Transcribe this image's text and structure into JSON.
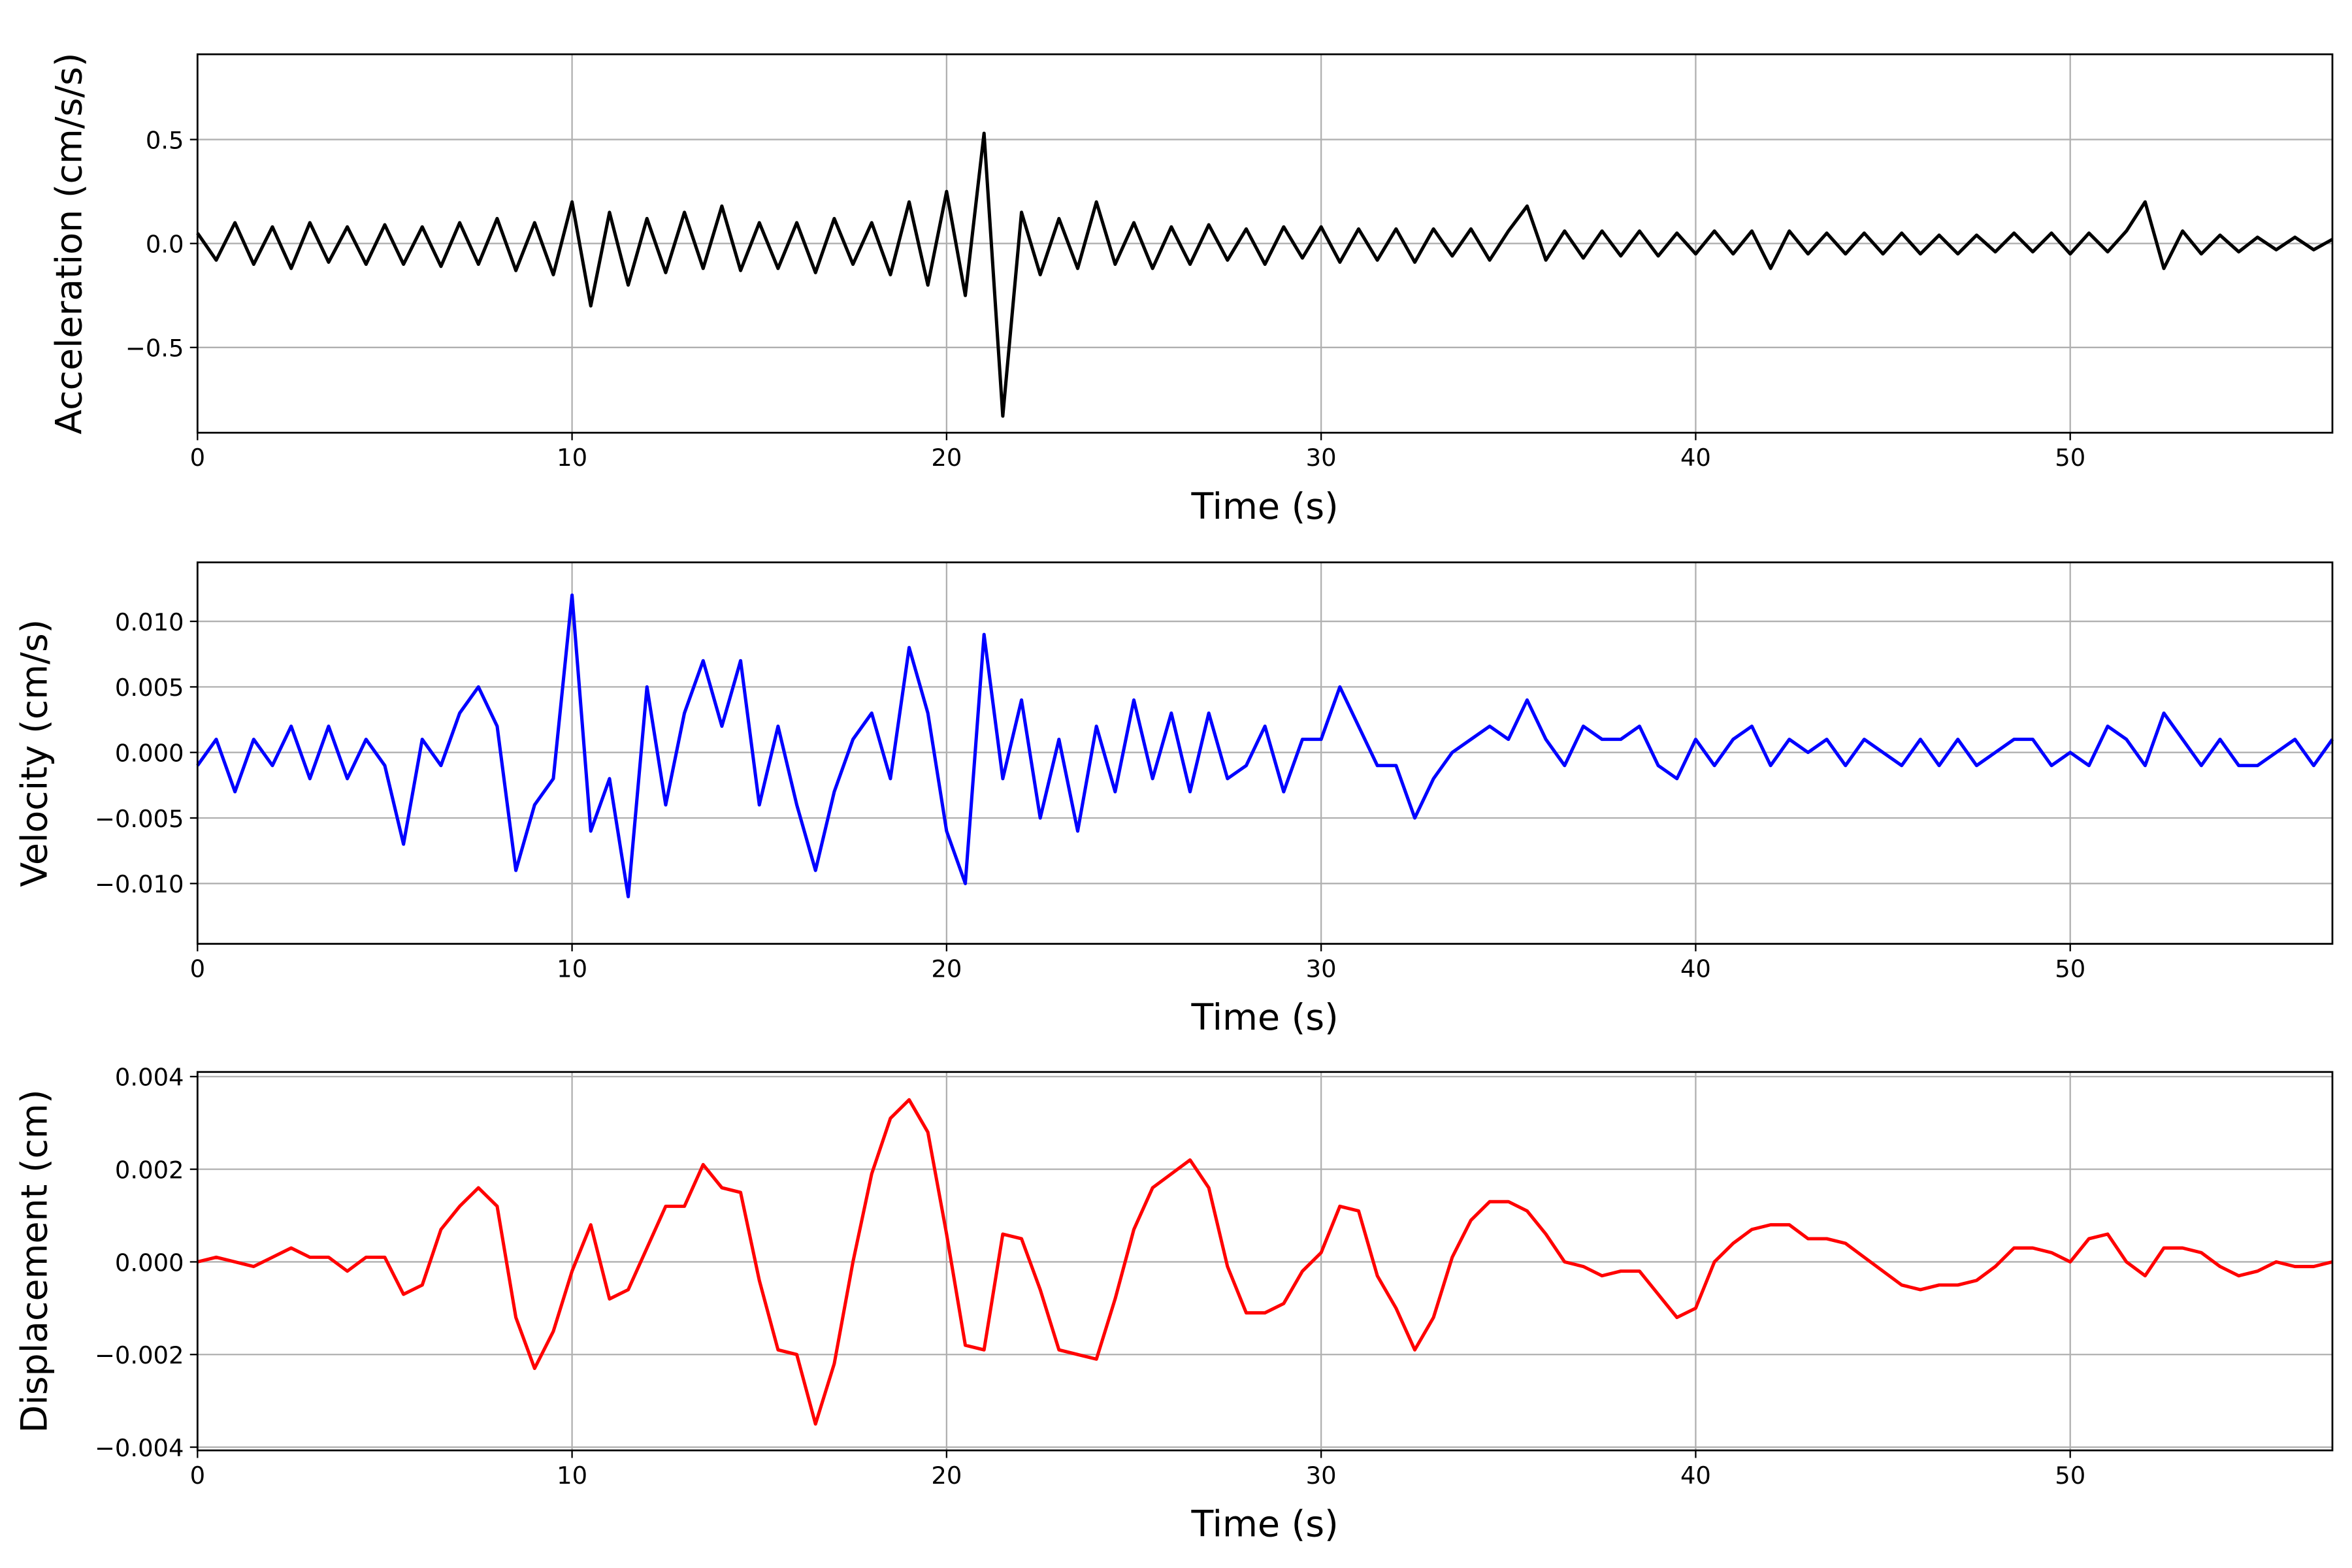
{
  "chart_data": [
    {
      "type": "line",
      "xlabel": "Time (s)",
      "ylabel": "Acceleration (cm/s/s)",
      "color": "#000000",
      "grid": true,
      "xlim": [
        0,
        57
      ],
      "xticks": [
        0,
        10,
        20,
        30,
        40,
        50
      ],
      "ylim": [
        -0.91,
        0.91
      ],
      "yticks": [
        {
          "value": -0.5,
          "label": "−0.5"
        },
        {
          "value": 0,
          "label": "0.0"
        },
        0.5
      ],
      "x": [
        0,
        0.5,
        1,
        1.5,
        2,
        2.5,
        3,
        3.5,
        4,
        4.5,
        5,
        5.5,
        6,
        6.5,
        7,
        7.5,
        8,
        8.5,
        9,
        9.5,
        10,
        10.5,
        11,
        11.5,
        12,
        12.5,
        13,
        13.5,
        14,
        14.5,
        15,
        15.5,
        16,
        16.5,
        17,
        17.5,
        18,
        18.5,
        19,
        19.5,
        20,
        20.5,
        21,
        21.5,
        22,
        22.5,
        23,
        23.5,
        24,
        24.5,
        25,
        25.5,
        26,
        26.5,
        27,
        27.5,
        28,
        28.5,
        29,
        29.5,
        30,
        30.5,
        31,
        31.5,
        32,
        32.5,
        33,
        33.5,
        34,
        34.5,
        35,
        35.5,
        36,
        36.5,
        37,
        37.5,
        38,
        38.5,
        39,
        39.5,
        40,
        40.5,
        41,
        41.5,
        42,
        42.5,
        43,
        43.5,
        44,
        44.5,
        45,
        45.5,
        46,
        46.5,
        47,
        47.5,
        48,
        48.5,
        49,
        49.5,
        50,
        50.5,
        51,
        51.5,
        52,
        52.5,
        53,
        53.5,
        54,
        54.5,
        55,
        55.5,
        56,
        56.5,
        57
      ],
      "values": [
        0.05,
        -0.08,
        0.1,
        -0.1,
        0.08,
        -0.12,
        0.1,
        -0.09,
        0.08,
        -0.1,
        0.09,
        -0.1,
        0.08,
        -0.11,
        0.1,
        -0.1,
        0.12,
        -0.13,
        0.1,
        -0.15,
        0.2,
        -0.3,
        0.15,
        -0.2,
        0.12,
        -0.14,
        0.15,
        -0.12,
        0.18,
        -0.13,
        0.1,
        -0.12,
        0.1,
        -0.14,
        0.12,
        -0.1,
        0.1,
        -0.15,
        0.2,
        -0.2,
        0.25,
        -0.25,
        0.53,
        -0.83,
        0.15,
        -0.15,
        0.12,
        -0.12,
        0.2,
        -0.1,
        0.1,
        -0.12,
        0.08,
        -0.1,
        0.09,
        -0.08,
        0.07,
        -0.1,
        0.08,
        -0.07,
        0.08,
        -0.09,
        0.07,
        -0.08,
        0.07,
        -0.09,
        0.07,
        -0.06,
        0.07,
        -0.08,
        0.06,
        0.18,
        -0.08,
        0.06,
        -0.07,
        0.06,
        -0.06,
        0.06,
        -0.06,
        0.05,
        -0.05,
        0.06,
        -0.05,
        0.06,
        -0.12,
        0.06,
        -0.05,
        0.05,
        -0.05,
        0.05,
        -0.05,
        0.05,
        -0.05,
        0.04,
        -0.05,
        0.04,
        -0.04,
        0.05,
        -0.04,
        0.05,
        -0.05,
        0.05,
        -0.04,
        0.06,
        0.2,
        -0.12,
        0.06,
        -0.05,
        0.04,
        -0.04,
        0.03,
        -0.03,
        0.03,
        -0.03,
        0.02
      ]
    },
    {
      "type": "line",
      "xlabel": "Time (s)",
      "ylabel": "Velocity (cm/s)",
      "color": "#0000ff",
      "grid": true,
      "xlim": [
        0,
        57
      ],
      "xticks": [
        0,
        10,
        20,
        30,
        40,
        50
      ],
      "ylim": [
        -0.0146,
        0.0145
      ],
      "yticks": [
        {
          "value": -0.01,
          "label": "−0.010"
        },
        {
          "value": -0.005,
          "label": "−0.005"
        },
        {
          "value": 0,
          "label": "0.000"
        },
        0.005,
        {
          "value": 0.01,
          "label": "0.010"
        }
      ],
      "x": [
        0,
        0.5,
        1,
        1.5,
        2,
        2.5,
        3,
        3.5,
        4,
        4.5,
        5,
        5.5,
        6,
        6.5,
        7,
        7.5,
        8,
        8.5,
        9,
        9.5,
        10,
        10.5,
        11,
        11.5,
        12,
        12.5,
        13,
        13.5,
        14,
        14.5,
        15,
        15.5,
        16,
        16.5,
        17,
        17.5,
        18,
        18.5,
        19,
        19.5,
        20,
        20.5,
        21,
        21.5,
        22,
        22.5,
        23,
        23.5,
        24,
        24.5,
        25,
        25.5,
        26,
        26.5,
        27,
        27.5,
        28,
        28.5,
        29,
        29.5,
        30,
        30.5,
        31,
        31.5,
        32,
        32.5,
        33,
        33.5,
        34,
        34.5,
        35,
        35.5,
        36,
        36.5,
        37,
        37.5,
        38,
        38.5,
        39,
        39.5,
        40,
        40.5,
        41,
        41.5,
        42,
        42.5,
        43,
        43.5,
        44,
        44.5,
        45,
        45.5,
        46,
        46.5,
        47,
        47.5,
        48,
        48.5,
        49,
        49.5,
        50,
        50.5,
        51,
        51.5,
        52,
        52.5,
        53,
        53.5,
        54,
        54.5,
        55,
        55.5,
        56,
        56.5,
        57
      ],
      "values": [
        -0.001,
        0.001,
        -0.003,
        0.001,
        -0.001,
        0.002,
        -0.002,
        0.002,
        -0.002,
        0.001,
        -0.001,
        -0.007,
        0.001,
        -0.001,
        0.003,
        0.005,
        0.002,
        -0.009,
        -0.004,
        -0.002,
        0.012,
        -0.006,
        -0.002,
        -0.011,
        0.005,
        -0.004,
        0.003,
        0.007,
        0.002,
        0.007,
        -0.004,
        0.002,
        -0.004,
        -0.009,
        -0.003,
        0.001,
        0.003,
        -0.002,
        0.008,
        0.003,
        -0.006,
        -0.01,
        0.009,
        -0.002,
        0.004,
        -0.005,
        0.001,
        -0.006,
        0.002,
        -0.003,
        0.004,
        -0.002,
        0.003,
        -0.003,
        0.003,
        -0.002,
        -0.001,
        0.002,
        -0.003,
        0.001,
        0.001,
        0.005,
        0.002,
        -0.001,
        -0.001,
        -0.005,
        -0.002,
        0,
        0.001,
        0.002,
        0.001,
        0.004,
        0.001,
        -0.001,
        0.002,
        0.001,
        0.001,
        0.002,
        -0.001,
        -0.002,
        0.001,
        -0.001,
        0.001,
        0.002,
        -0.001,
        0.001,
        0,
        0.001,
        -0.001,
        0.001,
        0,
        -0.001,
        0.001,
        -0.001,
        0.001,
        -0.001,
        0,
        0.001,
        0.001,
        -0.001,
        0,
        -0.001,
        0.002,
        0.001,
        -0.001,
        0.003,
        0.001,
        -0.001,
        0.001,
        -0.001,
        -0.001,
        0,
        0.001,
        -0.001,
        0.001
      ]
    },
    {
      "type": "line",
      "xlabel": "Time (s)",
      "ylabel": "Displacement (cm)",
      "color": "#ff0000",
      "grid": true,
      "xlim": [
        0,
        57
      ],
      "xticks": [
        0,
        10,
        20,
        30,
        40,
        50
      ],
      "ylim": [
        -0.00407,
        0.0041
      ],
      "yticks": [
        {
          "value": -0.004,
          "label": "−0.004"
        },
        {
          "value": -0.002,
          "label": "−0.002"
        },
        {
          "value": 0,
          "label": "0.000"
        },
        0.002,
        0.004
      ],
      "x": [
        0,
        0.5,
        1,
        1.5,
        2,
        2.5,
        3,
        3.5,
        4,
        4.5,
        5,
        5.5,
        6,
        6.5,
        7,
        7.5,
        8,
        8.5,
        9,
        9.5,
        10,
        10.5,
        11,
        11.5,
        12,
        12.5,
        13,
        13.5,
        14,
        14.5,
        15,
        15.5,
        16,
        16.5,
        17,
        17.5,
        18,
        18.5,
        19,
        19.5,
        20,
        20.5,
        21,
        21.5,
        22,
        22.5,
        23,
        23.5,
        24,
        24.5,
        25,
        25.5,
        26,
        26.5,
        27,
        27.5,
        28,
        28.5,
        29,
        29.5,
        30,
        30.5,
        31,
        31.5,
        32,
        32.5,
        33,
        33.5,
        34,
        34.5,
        35,
        35.5,
        36,
        36.5,
        37,
        37.5,
        38,
        38.5,
        39,
        39.5,
        40,
        40.5,
        41,
        41.5,
        42,
        42.5,
        43,
        43.5,
        44,
        44.5,
        45,
        45.5,
        46,
        46.5,
        47,
        47.5,
        48,
        48.5,
        49,
        49.5,
        50,
        50.5,
        51,
        51.5,
        52,
        52.5,
        53,
        53.5,
        54,
        54.5,
        55,
        55.5,
        56,
        56.5,
        57
      ],
      "values": [
        0,
        0.0001,
        0,
        -0.0001,
        0.0001,
        0.0003,
        0.0001,
        0.0001,
        -0.0002,
        0.0001,
        0.0001,
        -0.0007,
        -0.0005,
        0.0007,
        0.0012,
        0.0016,
        0.0012,
        -0.0012,
        -0.0023,
        -0.0015,
        -0.0002,
        0.0008,
        -0.0008,
        -0.0006,
        0.0003,
        0.0012,
        0.0012,
        0.0021,
        0.0016,
        0.0015,
        -0.0004,
        -0.0019,
        -0.002,
        -0.0035,
        -0.0022,
        0,
        0.0019,
        0.0031,
        0.0035,
        0.0028,
        0.0006,
        -0.0018,
        -0.0019,
        0.0006,
        0.0005,
        -0.0006,
        -0.0019,
        -0.002,
        -0.0021,
        -0.0008,
        0.0007,
        0.0016,
        0.0019,
        0.0022,
        0.0016,
        -0.0001,
        -0.0011,
        -0.0011,
        -0.0009,
        -0.0002,
        0.0002,
        0.0012,
        0.0011,
        -0.0003,
        -0.001,
        -0.0019,
        -0.0012,
        0.0001,
        0.0009,
        0.0013,
        0.0013,
        0.0011,
        0.0006,
        0,
        -0.0001,
        -0.0003,
        -0.0002,
        -0.0002,
        -0.0007,
        -0.0012,
        -0.001,
        0,
        0.0004,
        0.0007,
        0.0008,
        0.0008,
        0.0005,
        0.0005,
        0.0004,
        0.0001,
        -0.0002,
        -0.0005,
        -0.0006,
        -0.0005,
        -0.0005,
        -0.0004,
        -0.0001,
        0.0003,
        0.0003,
        0.0002,
        0,
        0.0005,
        0.0006,
        0,
        -0.0003,
        0.0003,
        0.0003,
        0.0002,
        -0.0001,
        -0.0003,
        -0.0002,
        0,
        -0.0001,
        -0.0001,
        0
      ]
    }
  ]
}
